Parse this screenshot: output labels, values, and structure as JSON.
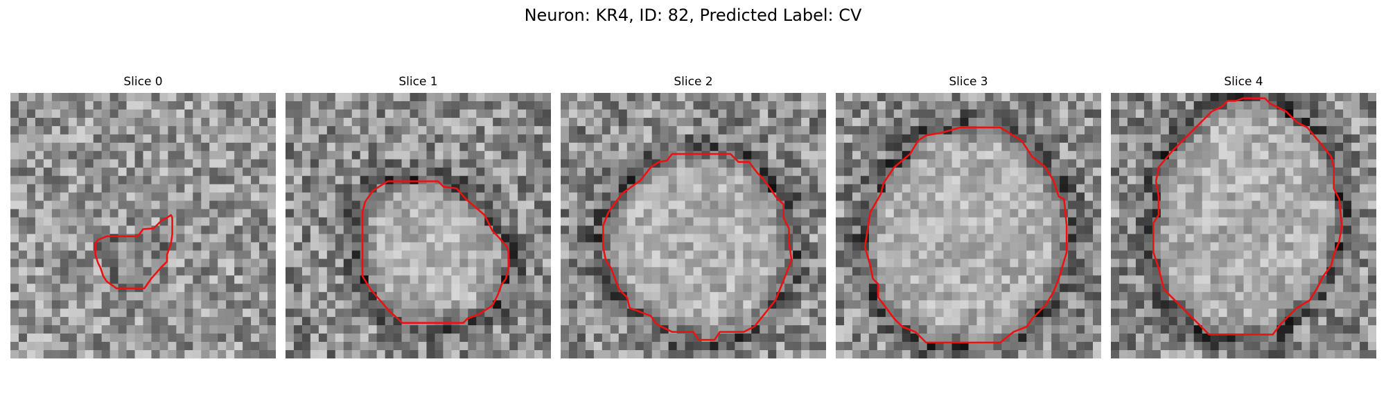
{
  "figure": {
    "title": "Neuron: KR4, ID: 82, Predicted Label: CV"
  },
  "panels": [
    {
      "title": "Slice 0",
      "contour": [
        [
          0.33,
          0.553
        ],
        [
          0.363,
          0.54
        ],
        [
          0.48,
          0.54
        ],
        [
          0.5,
          0.513
        ],
        [
          0.54,
          0.51
        ],
        [
          0.57,
          0.48
        ],
        [
          0.59,
          0.47
        ],
        [
          0.605,
          0.46
        ],
        [
          0.61,
          0.47
        ],
        [
          0.61,
          0.533
        ],
        [
          0.605,
          0.567
        ],
        [
          0.59,
          0.61
        ],
        [
          0.59,
          0.635
        ],
        [
          0.565,
          0.66
        ],
        [
          0.53,
          0.7
        ],
        [
          0.505,
          0.736
        ],
        [
          0.4,
          0.736
        ],
        [
          0.363,
          0.71
        ],
        [
          0.35,
          0.69
        ],
        [
          0.34,
          0.66
        ],
        [
          0.33,
          0.64
        ],
        [
          0.32,
          0.61
        ],
        [
          0.32,
          0.567
        ]
      ]
    },
    {
      "title": "Slice 1",
      "contour": [
        [
          0.3,
          0.41
        ],
        [
          0.33,
          0.367
        ],
        [
          0.385,
          0.333
        ],
        [
          0.575,
          0.333
        ],
        [
          0.595,
          0.353
        ],
        [
          0.645,
          0.36
        ],
        [
          0.68,
          0.4
        ],
        [
          0.75,
          0.46
        ],
        [
          0.77,
          0.5
        ],
        [
          0.78,
          0.52
        ],
        [
          0.8,
          0.54
        ],
        [
          0.835,
          0.58
        ],
        [
          0.84,
          0.6
        ],
        [
          0.84,
          0.66
        ],
        [
          0.83,
          0.7
        ],
        [
          0.815,
          0.72
        ],
        [
          0.8,
          0.76
        ],
        [
          0.78,
          0.8
        ],
        [
          0.73,
          0.833
        ],
        [
          0.685,
          0.85
        ],
        [
          0.67,
          0.866
        ],
        [
          0.44,
          0.866
        ],
        [
          0.39,
          0.82
        ],
        [
          0.355,
          0.78
        ],
        [
          0.32,
          0.74
        ],
        [
          0.29,
          0.69
        ],
        [
          0.29,
          0.45
        ]
      ]
    },
    {
      "title": "Slice 2",
      "contour": [
        [
          0.18,
          0.45
        ],
        [
          0.23,
          0.38
        ],
        [
          0.3,
          0.33
        ],
        [
          0.34,
          0.28
        ],
        [
          0.37,
          0.26
        ],
        [
          0.4,
          0.255
        ],
        [
          0.42,
          0.23
        ],
        [
          0.64,
          0.23
        ],
        [
          0.67,
          0.26
        ],
        [
          0.71,
          0.26
        ],
        [
          0.74,
          0.3
        ],
        [
          0.76,
          0.32
        ],
        [
          0.79,
          0.36
        ],
        [
          0.81,
          0.39
        ],
        [
          0.84,
          0.42
        ],
        [
          0.84,
          0.47
        ],
        [
          0.86,
          0.51
        ],
        [
          0.86,
          0.56
        ],
        [
          0.87,
          0.63
        ],
        [
          0.85,
          0.68
        ],
        [
          0.83,
          0.73
        ],
        [
          0.81,
          0.78
        ],
        [
          0.77,
          0.83
        ],
        [
          0.73,
          0.88
        ],
        [
          0.69,
          0.9
        ],
        [
          0.6,
          0.9
        ],
        [
          0.58,
          0.93
        ],
        [
          0.52,
          0.93
        ],
        [
          0.5,
          0.9
        ],
        [
          0.42,
          0.9
        ],
        [
          0.36,
          0.87
        ],
        [
          0.34,
          0.84
        ],
        [
          0.26,
          0.81
        ],
        [
          0.25,
          0.77
        ],
        [
          0.22,
          0.74
        ],
        [
          0.19,
          0.66
        ],
        [
          0.17,
          0.63
        ],
        [
          0.16,
          0.58
        ],
        [
          0.16,
          0.5
        ]
      ]
    },
    {
      "title": "Slice 3",
      "contour": [
        [
          0.17,
          0.38
        ],
        [
          0.18,
          0.34
        ],
        [
          0.22,
          0.28
        ],
        [
          0.28,
          0.23
        ],
        [
          0.31,
          0.18
        ],
        [
          0.34,
          0.16
        ],
        [
          0.4,
          0.15
        ],
        [
          0.47,
          0.13
        ],
        [
          0.62,
          0.13
        ],
        [
          0.7,
          0.18
        ],
        [
          0.74,
          0.24
        ],
        [
          0.79,
          0.28
        ],
        [
          0.82,
          0.33
        ],
        [
          0.84,
          0.39
        ],
        [
          0.86,
          0.4
        ],
        [
          0.87,
          0.5
        ],
        [
          0.87,
          0.6
        ],
        [
          0.84,
          0.7
        ],
        [
          0.82,
          0.75
        ],
        [
          0.79,
          0.8
        ],
        [
          0.77,
          0.82
        ],
        [
          0.74,
          0.85
        ],
        [
          0.72,
          0.88
        ],
        [
          0.67,
          0.9
        ],
        [
          0.62,
          0.94
        ],
        [
          0.34,
          0.94
        ],
        [
          0.3,
          0.9
        ],
        [
          0.25,
          0.88
        ],
        [
          0.22,
          0.85
        ],
        [
          0.19,
          0.81
        ],
        [
          0.16,
          0.77
        ],
        [
          0.16,
          0.72
        ],
        [
          0.14,
          0.7
        ],
        [
          0.13,
          0.65
        ],
        [
          0.11,
          0.58
        ],
        [
          0.13,
          0.45
        ]
      ]
    },
    {
      "title": "Slice 4",
      "contour": [
        [
          0.17,
          0.333
        ],
        [
          0.18,
          0.28
        ],
        [
          0.23,
          0.22
        ],
        [
          0.26,
          0.19
        ],
        [
          0.3,
          0.15
        ],
        [
          0.38,
          0.07
        ],
        [
          0.42,
          0.05
        ],
        [
          0.44,
          0.03
        ],
        [
          0.47,
          0.03
        ],
        [
          0.5,
          0.02
        ],
        [
          0.58,
          0.02
        ],
        [
          0.6,
          0.04
        ],
        [
          0.66,
          0.07
        ],
        [
          0.7,
          0.11
        ],
        [
          0.74,
          0.13
        ],
        [
          0.79,
          0.19
        ],
        [
          0.83,
          0.24
        ],
        [
          0.84,
          0.28
        ],
        [
          0.84,
          0.36
        ],
        [
          0.86,
          0.4
        ],
        [
          0.87,
          0.5
        ],
        [
          0.86,
          0.56
        ],
        [
          0.84,
          0.61
        ],
        [
          0.83,
          0.65
        ],
        [
          0.8,
          0.69
        ],
        [
          0.78,
          0.73
        ],
        [
          0.75,
          0.78
        ],
        [
          0.7,
          0.81
        ],
        [
          0.68,
          0.83
        ],
        [
          0.64,
          0.87
        ],
        [
          0.61,
          0.91
        ],
        [
          0.37,
          0.91
        ],
        [
          0.33,
          0.87
        ],
        [
          0.28,
          0.82
        ],
        [
          0.24,
          0.78
        ],
        [
          0.2,
          0.74
        ],
        [
          0.18,
          0.66
        ],
        [
          0.16,
          0.6
        ],
        [
          0.16,
          0.49
        ],
        [
          0.18,
          0.46
        ],
        [
          0.18,
          0.39
        ]
      ]
    }
  ],
  "colors": {
    "contour": "#ee1111"
  },
  "image": {
    "colormap": "gray",
    "grid_size": 32
  }
}
